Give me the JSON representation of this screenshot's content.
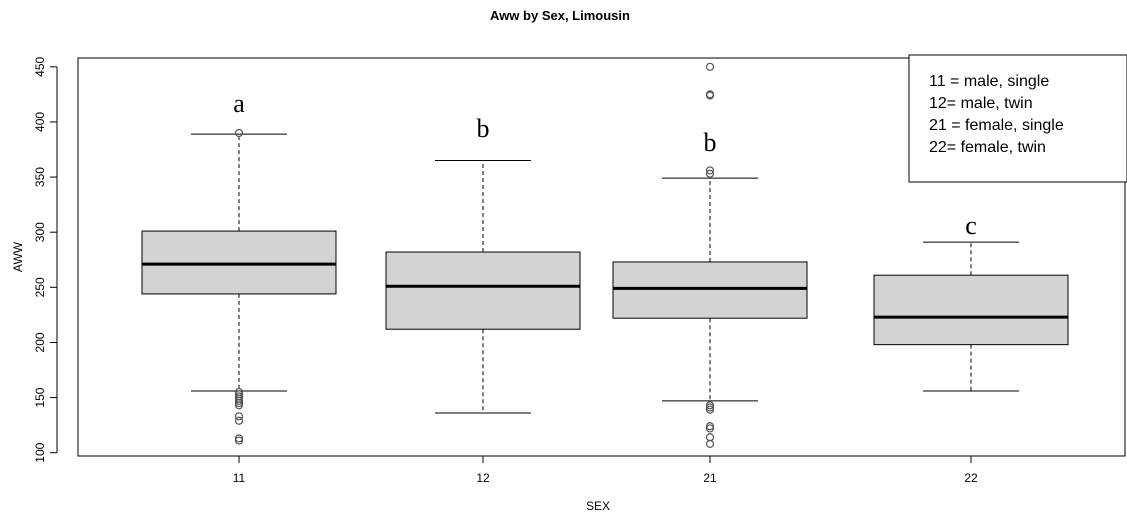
{
  "chart_data": {
    "type": "box",
    "title": "Aww by Sex, Limousin",
    "xlabel": "SEX",
    "ylabel": "AWW",
    "ylim": [
      97,
      458
    ],
    "yticks": [
      100,
      150,
      200,
      250,
      300,
      350,
      400,
      450
    ],
    "grid": false,
    "box_fill": "#d3d3d3",
    "outlier_color": "#555555",
    "legend_position": "top-right",
    "legend": [
      "11 = male, single",
      "12= male, twin",
      "21 = female, single",
      "22= female, twin"
    ],
    "groups": [
      {
        "category": "11",
        "whisker_low": 156,
        "q1": 244,
        "median": 271,
        "q3": 301,
        "whisker_high": 389,
        "outliers": [
          390,
          155,
          153,
          151,
          149,
          147,
          145,
          143,
          133,
          129,
          113,
          111
        ],
        "letter": "a"
      },
      {
        "category": "12",
        "whisker_low": 136,
        "q1": 212,
        "median": 251,
        "q3": 282,
        "whisker_high": 365,
        "outliers": [],
        "letter": "b"
      },
      {
        "category": "21",
        "whisker_low": 147,
        "q1": 222,
        "median": 249,
        "q3": 273,
        "whisker_high": 349,
        "outliers": [
          450,
          425,
          424,
          356,
          353,
          143,
          141,
          139,
          124,
          122,
          114,
          108
        ],
        "letter": "b"
      },
      {
        "category": "22",
        "whisker_low": 156,
        "q1": 198,
        "median": 223,
        "q3": 261,
        "whisker_high": 291,
        "outliers": [],
        "letter": "c"
      }
    ]
  }
}
